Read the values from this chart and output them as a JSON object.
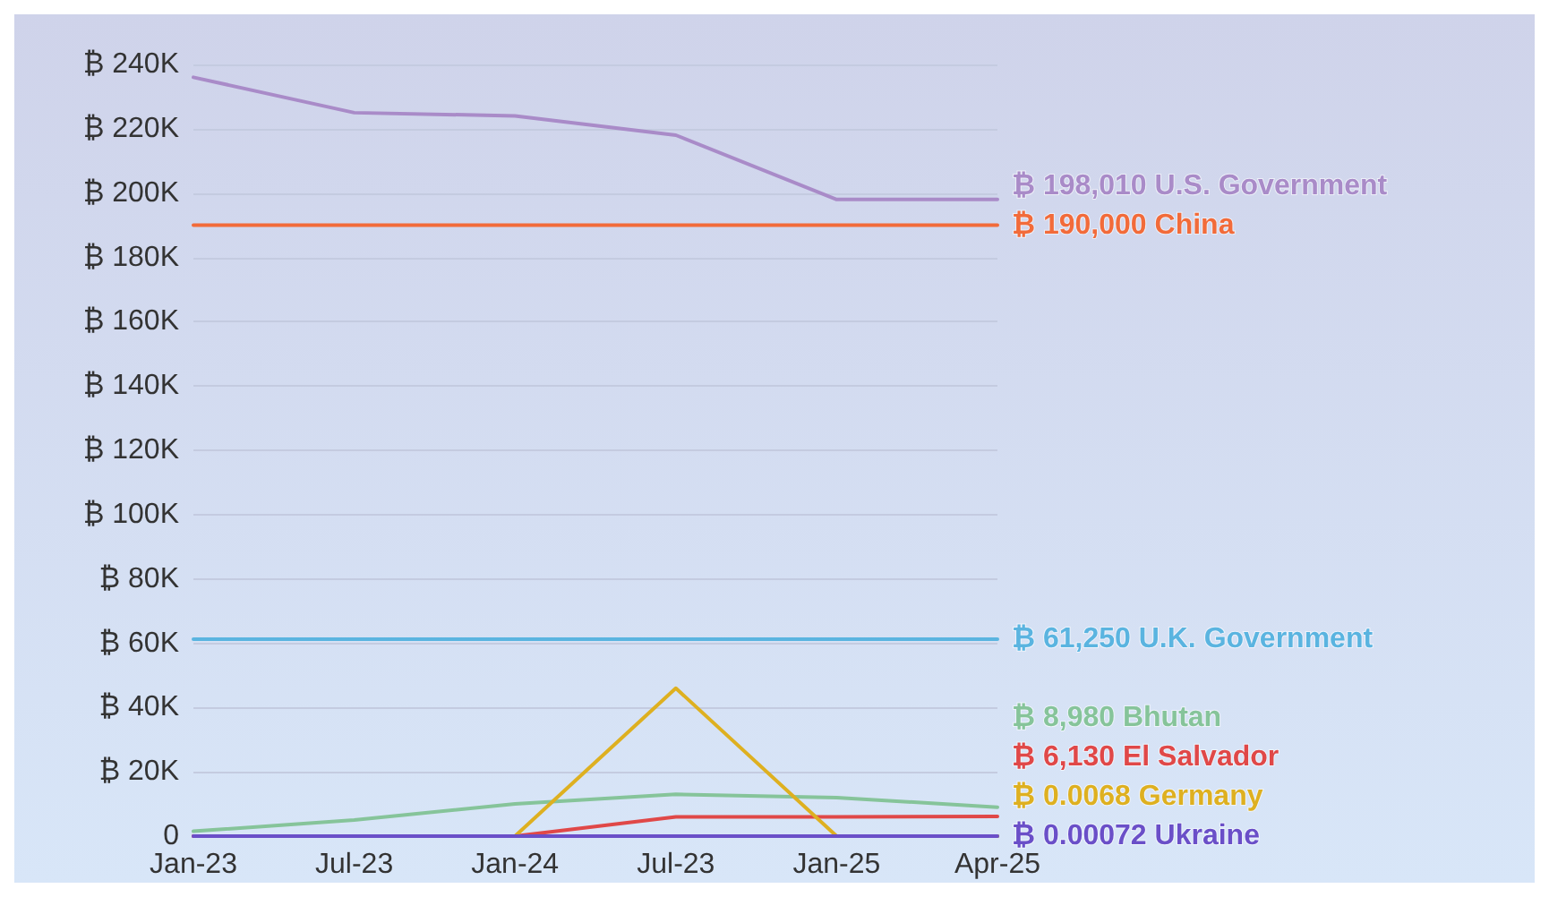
{
  "chart_data": {
    "type": "line",
    "categories": [
      "Jan-23",
      "Jul-23",
      "Jan-24",
      "Jul-23",
      "Jan-25",
      "Apr-25"
    ],
    "ylim": [
      0,
      240000
    ],
    "yticks": [
      {
        "value": 0,
        "label": "0"
      },
      {
        "value": 20000,
        "label": "₿ 20K"
      },
      {
        "value": 40000,
        "label": "₿ 40K"
      },
      {
        "value": 60000,
        "label": "₿ 60K"
      },
      {
        "value": 80000,
        "label": "₿ 80K"
      },
      {
        "value": 100000,
        "label": "₿ 100K"
      },
      {
        "value": 120000,
        "label": "₿ 120K"
      },
      {
        "value": 140000,
        "label": "₿ 140K"
      },
      {
        "value": 160000,
        "label": "₿ 160K"
      },
      {
        "value": 180000,
        "label": "₿ 180K"
      },
      {
        "value": 200000,
        "label": "₿ 200K"
      },
      {
        "value": 220000,
        "label": "₿ 220K"
      },
      {
        "value": 240000,
        "label": "₿ 240K"
      }
    ],
    "grid": "y",
    "legend": false,
    "marker": "none",
    "line_style": "solid",
    "series": [
      {
        "name": "U.S. Government",
        "color": "#a98bc8",
        "values": [
          236000,
          225000,
          224000,
          218000,
          198000,
          198010
        ],
        "value_labels": [
          null,
          null,
          null,
          null,
          null,
          "₿ 198,010"
        ]
      },
      {
        "name": "China",
        "color": "#f26b3a",
        "values": [
          190000,
          190000,
          190000,
          190000,
          190000,
          190000
        ],
        "value_labels": [
          null,
          null,
          null,
          null,
          null,
          "₿ 190,000"
        ]
      },
      {
        "name": "U.K. Government",
        "color": "#5ab4e0",
        "values": [
          61250,
          61250,
          61250,
          61250,
          61250,
          61250
        ],
        "value_labels": [
          null,
          null,
          null,
          null,
          null,
          "₿ 61,250"
        ]
      },
      {
        "name": "Bhutan",
        "color": "#86c49a",
        "values": [
          1500,
          5000,
          10000,
          13000,
          12000,
          8980
        ],
        "value_labels": [
          null,
          null,
          null,
          null,
          null,
          "₿ 8,980"
        ]
      },
      {
        "name": "El Salvador",
        "color": "#e04848",
        "values": [
          0,
          0,
          0,
          6000,
          6000,
          6130
        ],
        "value_labels": [
          null,
          null,
          null,
          null,
          null,
          "₿ 6,130"
        ]
      },
      {
        "name": "Germany",
        "color": "#deb020",
        "values": [
          null,
          null,
          0,
          46000,
          0,
          0.0068
        ],
        "value_labels": [
          null,
          null,
          null,
          null,
          null,
          "₿ 0.0068"
        ]
      },
      {
        "name": "Ukraine",
        "color": "#6a4fc8",
        "values": [
          0,
          0,
          0,
          0,
          0,
          0.00072
        ],
        "value_labels": [
          null,
          null,
          null,
          null,
          null,
          "₿ 0.00072"
        ]
      }
    ]
  }
}
